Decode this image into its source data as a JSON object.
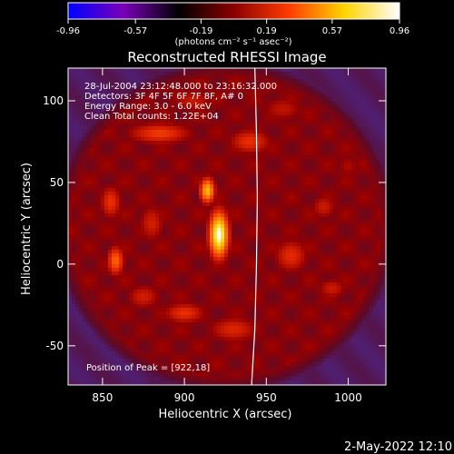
{
  "colorbar": {
    "ticks": [
      "-0.96",
      "-0.57",
      "-0.19",
      "0.19",
      "0.57",
      "0.96"
    ],
    "tick_values": [
      -0.96,
      -0.57,
      -0.19,
      0.19,
      0.57,
      0.96
    ],
    "range": [
      -0.96,
      0.96
    ],
    "units_label": "(photons cm⁻² s⁻¹ asec⁻²)",
    "colors": [
      "#0000ff",
      "#7a00b8",
      "#000000",
      "#8a0000",
      "#ff3c00",
      "#ffd400",
      "#ffffff"
    ]
  },
  "chart_data": {
    "type": "heatmap",
    "title": "Reconstructed RHESSI Image",
    "xlabel": "Heliocentric X (arcsec)",
    "ylabel": "Heliocentric Y (arcsec)",
    "xlim": [
      829,
      1023
    ],
    "ylim": [
      -74,
      120
    ],
    "x_ticks": [
      850,
      900,
      950,
      1000
    ],
    "y_ticks": [
      -50,
      0,
      50,
      100
    ],
    "info_lines": [
      "28-Jul-2004 23:12:48.000 to 23:16:32.000",
      "Detectors: 3F 4F 5F 6F 7F 8F, A# 0",
      "Energy Range: 3.0 - 6.0 keV",
      "Clean     Total counts: 1.22E+04"
    ],
    "peak_label": "Position of Peak = [922,18]",
    "peak_position": [
      922,
      18
    ],
    "limb_points": [
      [
        943,
        120
      ],
      [
        944,
        80
      ],
      [
        944.5,
        40
      ],
      [
        944,
        0
      ],
      [
        943,
        -40
      ],
      [
        941,
        -74
      ]
    ],
    "sources": [
      {
        "x": 921,
        "y": 18,
        "sx": 4.5,
        "sy": 11,
        "value": 0.96
      },
      {
        "x": 914,
        "y": 45,
        "sx": 3.5,
        "sy": 6,
        "value": 0.75
      },
      {
        "x": 858,
        "y": 2,
        "sx": 4,
        "sy": 7,
        "value": 0.55
      },
      {
        "x": 855,
        "y": 38,
        "sx": 5,
        "sy": 8,
        "value": 0.42
      },
      {
        "x": 900,
        "y": -30,
        "sx": 10,
        "sy": 5,
        "value": 0.42
      },
      {
        "x": 885,
        "y": 80,
        "sx": 15,
        "sy": 5,
        "value": 0.45
      },
      {
        "x": 940,
        "y": 75,
        "sx": 10,
        "sy": 6,
        "value": 0.42
      },
      {
        "x": 965,
        "y": 5,
        "sx": 8,
        "sy": 8,
        "value": 0.4
      },
      {
        "x": 985,
        "y": 35,
        "sx": 6,
        "sy": 6,
        "value": 0.33
      },
      {
        "x": 990,
        "y": -15,
        "sx": 7,
        "sy": 5,
        "value": 0.33
      },
      {
        "x": 930,
        "y": -40,
        "sx": 12,
        "sy": 6,
        "value": 0.38
      },
      {
        "x": 880,
        "y": 25,
        "sx": 6,
        "sy": 9,
        "value": 0.35
      },
      {
        "x": 875,
        "y": -20,
        "sx": 8,
        "sy": 6,
        "value": 0.35
      },
      {
        "x": 960,
        "y": 95,
        "sx": 10,
        "sy": 6,
        "value": 0.3
      },
      {
        "x": 905,
        "y": 100,
        "sx": 10,
        "sy": 5,
        "value": 0.32
      },
      {
        "x": 1000,
        "y": 60,
        "sx": 6,
        "sy": 6,
        "value": 0.25
      }
    ]
  },
  "footer": {
    "timestamp": "2-May-2022 12:10"
  }
}
